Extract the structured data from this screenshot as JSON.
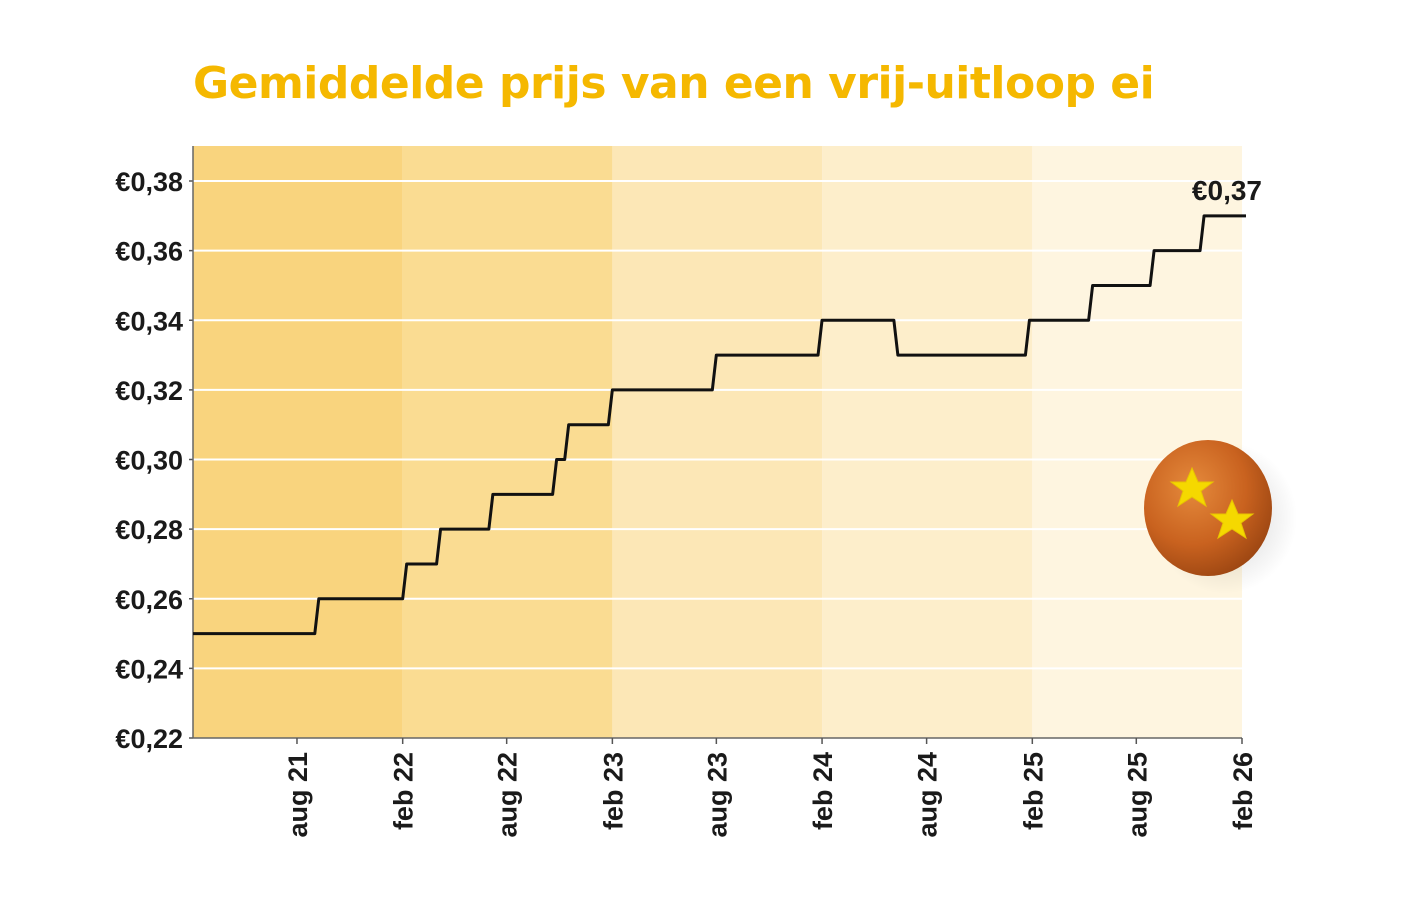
{
  "title": "Gemiddelde prijs van een vrij-uitloop ei",
  "colors": {
    "title": "#f5b800",
    "line": "#111111",
    "grid": "#ffffff",
    "bands": [
      "#f9d47e",
      "#fadc92",
      "#fce7b6",
      "#fdeecb",
      "#fef5e0"
    ]
  },
  "chart_data": {
    "type": "line",
    "step": true,
    "title": "Gemiddelde prijs van een vrij-uitloop ei",
    "xlabel": "",
    "ylabel": "",
    "ylim": [
      0.22,
      0.39
    ],
    "xlim": [
      "2021-02-01",
      "2026-02-01"
    ],
    "y_ticks": [
      {
        "value": 0.22,
        "label": "€0,22"
      },
      {
        "value": 0.24,
        "label": "€0,24"
      },
      {
        "value": 0.26,
        "label": "€0,26"
      },
      {
        "value": 0.28,
        "label": "€0,28"
      },
      {
        "value": 0.3,
        "label": "€0,30"
      },
      {
        "value": 0.32,
        "label": "€0,32"
      },
      {
        "value": 0.34,
        "label": "€0,34"
      },
      {
        "value": 0.36,
        "label": "€0,36"
      },
      {
        "value": 0.38,
        "label": "€0,38"
      }
    ],
    "x_ticks": [
      {
        "date": "2021-08-01",
        "label": "aug 21"
      },
      {
        "date": "2022-02-01",
        "label": "feb 22"
      },
      {
        "date": "2022-08-01",
        "label": "aug 22"
      },
      {
        "date": "2023-02-01",
        "label": "feb 23"
      },
      {
        "date": "2023-08-01",
        "label": "aug 23"
      },
      {
        "date": "2024-02-01",
        "label": "feb 24"
      },
      {
        "date": "2024-08-01",
        "label": "aug 24"
      },
      {
        "date": "2025-02-01",
        "label": "feb 25"
      },
      {
        "date": "2025-08-01",
        "label": "aug 25"
      },
      {
        "date": "2026-02-01",
        "label": "feb 26"
      }
    ],
    "bands": [
      {
        "from": "2021-02-01",
        "to": "2022-02-01"
      },
      {
        "from": "2022-02-01",
        "to": "2023-02-01"
      },
      {
        "from": "2023-02-01",
        "to": "2024-02-01"
      },
      {
        "from": "2024-02-01",
        "to": "2025-02-01"
      },
      {
        "from": "2025-02-01",
        "to": "2026-02-01"
      }
    ],
    "series": [
      {
        "points": [
          {
            "x": "2021-02-01",
            "y": 0.25
          },
          {
            "x": "2021-09-01",
            "y": 0.26
          },
          {
            "x": "2022-02-01",
            "y": 0.27
          },
          {
            "x": "2022-04-01",
            "y": 0.28
          },
          {
            "x": "2022-07-01",
            "y": 0.29
          },
          {
            "x": "2022-10-20",
            "y": 0.3
          },
          {
            "x": "2022-11-10",
            "y": 0.31
          },
          {
            "x": "2023-01-25",
            "y": 0.32
          },
          {
            "x": "2023-07-25",
            "y": 0.33
          },
          {
            "x": "2024-01-25",
            "y": 0.34
          },
          {
            "x": "2024-06-05",
            "y": 0.33
          },
          {
            "x": "2025-01-20",
            "y": 0.34
          },
          {
            "x": "2025-05-10",
            "y": 0.35
          },
          {
            "x": "2025-08-25",
            "y": 0.36
          },
          {
            "x": "2025-11-20",
            "y": 0.37
          },
          {
            "x": "2026-02-01",
            "y": 0.37
          }
        ]
      }
    ],
    "end_label": "€0,37"
  }
}
